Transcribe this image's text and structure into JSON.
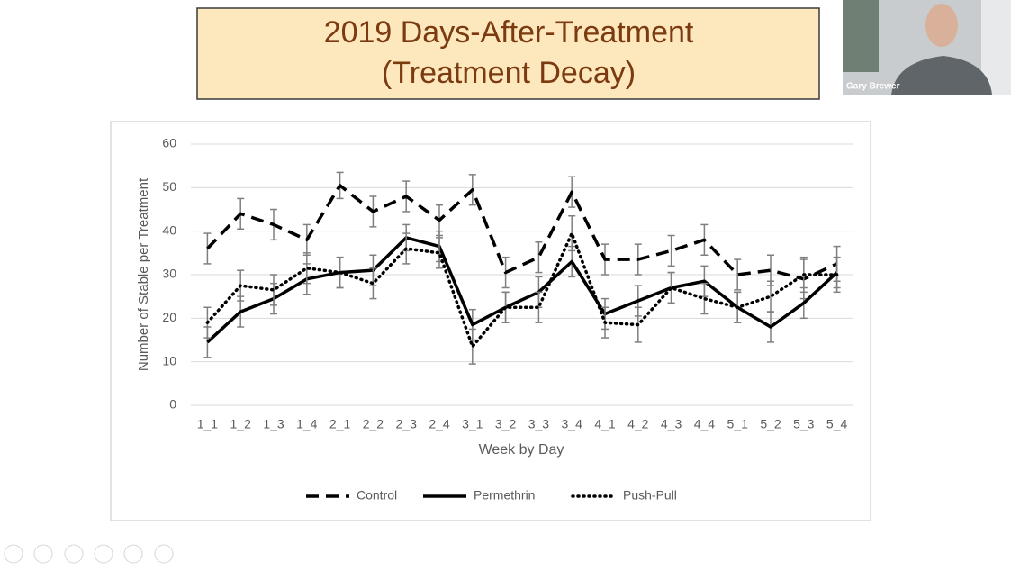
{
  "slide": {
    "presenter": "Gary Brewer"
  },
  "chart_data": {
    "type": "line",
    "title": "2019 Days-After-Treatment",
    "subtitle": "(Treatment Decay)",
    "x_label": "Week by Day",
    "y_label": "Number of Stable per Treatment",
    "categories": [
      "1_1",
      "1_2",
      "1_3",
      "1_4",
      "2_1",
      "2_2",
      "2_3",
      "2_4",
      "3_1",
      "3_2",
      "3_3",
      "3_4",
      "4_1",
      "4_2",
      "4_3",
      "4_4",
      "5_1",
      "5_2",
      "5_3",
      "5_4"
    ],
    "ylim": [
      0,
      60
    ],
    "yticks": [
      0,
      10,
      20,
      30,
      40,
      50,
      60
    ],
    "grid": true,
    "legend": "bottom",
    "series": [
      {
        "name": "Control",
        "color": "#000000",
        "style": "dashed",
        "values": [
          36,
          44,
          41.5,
          38,
          50.5,
          44.5,
          48,
          42.5,
          49.5,
          30.5,
          34,
          49,
          33.5,
          33.5,
          35.5,
          38,
          30,
          31,
          29,
          32.5
        ],
        "errors": [
          3.5,
          3.5,
          3.5,
          3.5,
          3,
          3.5,
          3.5,
          3.5,
          3.5,
          3.5,
          3.5,
          3.5,
          3.5,
          3.5,
          3.5,
          3.5,
          3.5,
          3.5,
          4.5,
          4
        ]
      },
      {
        "name": "Permethrin",
        "color": "#000000",
        "style": "solid",
        "values": [
          14.5,
          21.5,
          24.5,
          29,
          30.5,
          31,
          38.5,
          36.5,
          18.5,
          22.5,
          26,
          33,
          21,
          24,
          27,
          28.5,
          22.5,
          18,
          23.5,
          30.5
        ],
        "errors": [
          3.5,
          3.5,
          3.5,
          3.5,
          3.5,
          3.5,
          3,
          3.5,
          3.5,
          3.5,
          3.5,
          3.5,
          3.5,
          3.5,
          3.5,
          3.5,
          3.5,
          3.5,
          3.5,
          3.5
        ]
      },
      {
        "name": "Push-Pull",
        "color": "#000000",
        "style": "dotted",
        "values": [
          19,
          27.5,
          26.5,
          31.5,
          30.5,
          28,
          36,
          35,
          13.5,
          22.5,
          22.5,
          39.5,
          19,
          18.5,
          27,
          24.5,
          22.5,
          25,
          30,
          30
        ],
        "errors": [
          3.5,
          3.5,
          3.5,
          3.5,
          3.5,
          3.5,
          3.5,
          3.5,
          4,
          3.5,
          3.5,
          4,
          3.5,
          4,
          3.5,
          3.5,
          3.5,
          3.5,
          4,
          4
        ]
      }
    ]
  }
}
